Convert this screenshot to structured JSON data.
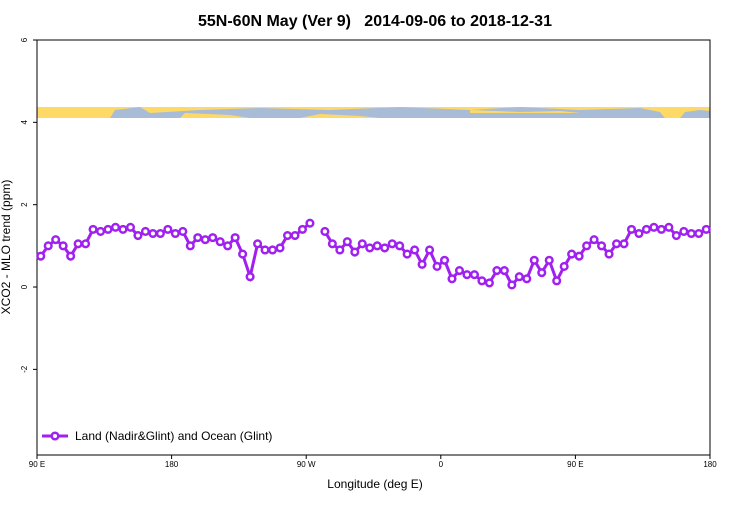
{
  "chart_data": {
    "type": "line",
    "title": "55N-60N May (Ver 9)   2014-09-06 to 2018-12-31",
    "xlabel": "Longitude (deg E)",
    "ylabel": "XCO2 - MLO trend (ppm)",
    "x": [
      92.5,
      97.5,
      102.5,
      107.5,
      112.5,
      117.5,
      122.5,
      127.5,
      132.5,
      137.5,
      142.5,
      147.5,
      152.5,
      157.5,
      162.5,
      167.5,
      172.5,
      177.5,
      182.5,
      187.5,
      192.5,
      197.5,
      202.5,
      207.5,
      212.5,
      217.5,
      222.5,
      227.5,
      232.5,
      237.5,
      242.5,
      247.5,
      252.5,
      257.5,
      262.5,
      267.5,
      272.5,
      277.5,
      282.5,
      287.5,
      292.5,
      297.5,
      302.5,
      307.5,
      312.5,
      317.5,
      322.5,
      327.5,
      332.5,
      337.5,
      342.5,
      347.5,
      352.5,
      357.5,
      362.5,
      367.5,
      372.5,
      377.5,
      382.5,
      387.5,
      392.5,
      397.5,
      402.5,
      407.5,
      412.5,
      417.5,
      422.5,
      427.5,
      432.5,
      437.5,
      442.5,
      447.5,
      452.5,
      457.5,
      462.5,
      467.5,
      472.5,
      477.5,
      482.5,
      487.5,
      492.5,
      497.5,
      502.5,
      507.5,
      512.5,
      517.5,
      522.5,
      527.5,
      532.5,
      537.5
    ],
    "series": [
      {
        "name": "Land (Nadir&Glint) and Ocean (Glint)",
        "color": "#a020f0",
        "values": [
          0.75,
          1.0,
          1.15,
          1.0,
          0.75,
          1.05,
          1.05,
          1.4,
          1.35,
          1.4,
          1.45,
          1.4,
          1.45,
          1.25,
          1.35,
          1.3,
          1.3,
          1.4,
          1.3,
          1.35,
          1.0,
          1.2,
          1.15,
          1.2,
          1.1,
          1.0,
          1.2,
          0.8,
          0.25,
          1.05,
          0.9,
          0.9,
          0.95,
          1.25,
          1.25,
          1.4,
          1.55,
          null,
          1.35,
          1.05,
          0.9,
          1.1,
          0.85,
          1.05,
          0.95,
          1.0,
          0.95,
          1.05,
          1.0,
          0.8,
          0.9,
          0.55,
          0.9,
          0.5,
          0.65,
          0.2,
          0.4,
          0.3,
          0.3,
          0.15,
          0.1,
          0.4,
          0.4,
          0.05,
          0.25,
          0.2,
          0.65,
          0.35,
          0.65,
          0.15,
          0.5,
          0.8,
          0.75,
          1.0,
          1.15,
          1.0,
          0.8,
          1.05,
          1.05,
          1.4,
          1.3,
          1.4,
          1.45,
          1.4,
          1.45,
          1.25,
          1.35,
          1.3,
          1.3,
          1.4
        ]
      }
    ],
    "xlim": [
      90,
      540
    ],
    "xticks": [
      {
        "value": 90,
        "label": "90 E"
      },
      180,
      {
        "value": 270,
        "label": "90 W"
      },
      {
        "value": 360,
        "label": "0"
      },
      {
        "value": 450,
        "label": "90 E"
      },
      {
        "value": 540,
        "label": "180"
      }
    ],
    "ylim": [
      -4.08,
      6
    ],
    "yticks": [
      -2,
      0,
      2,
      4,
      6
    ],
    "legend": "bottom-left"
  }
}
